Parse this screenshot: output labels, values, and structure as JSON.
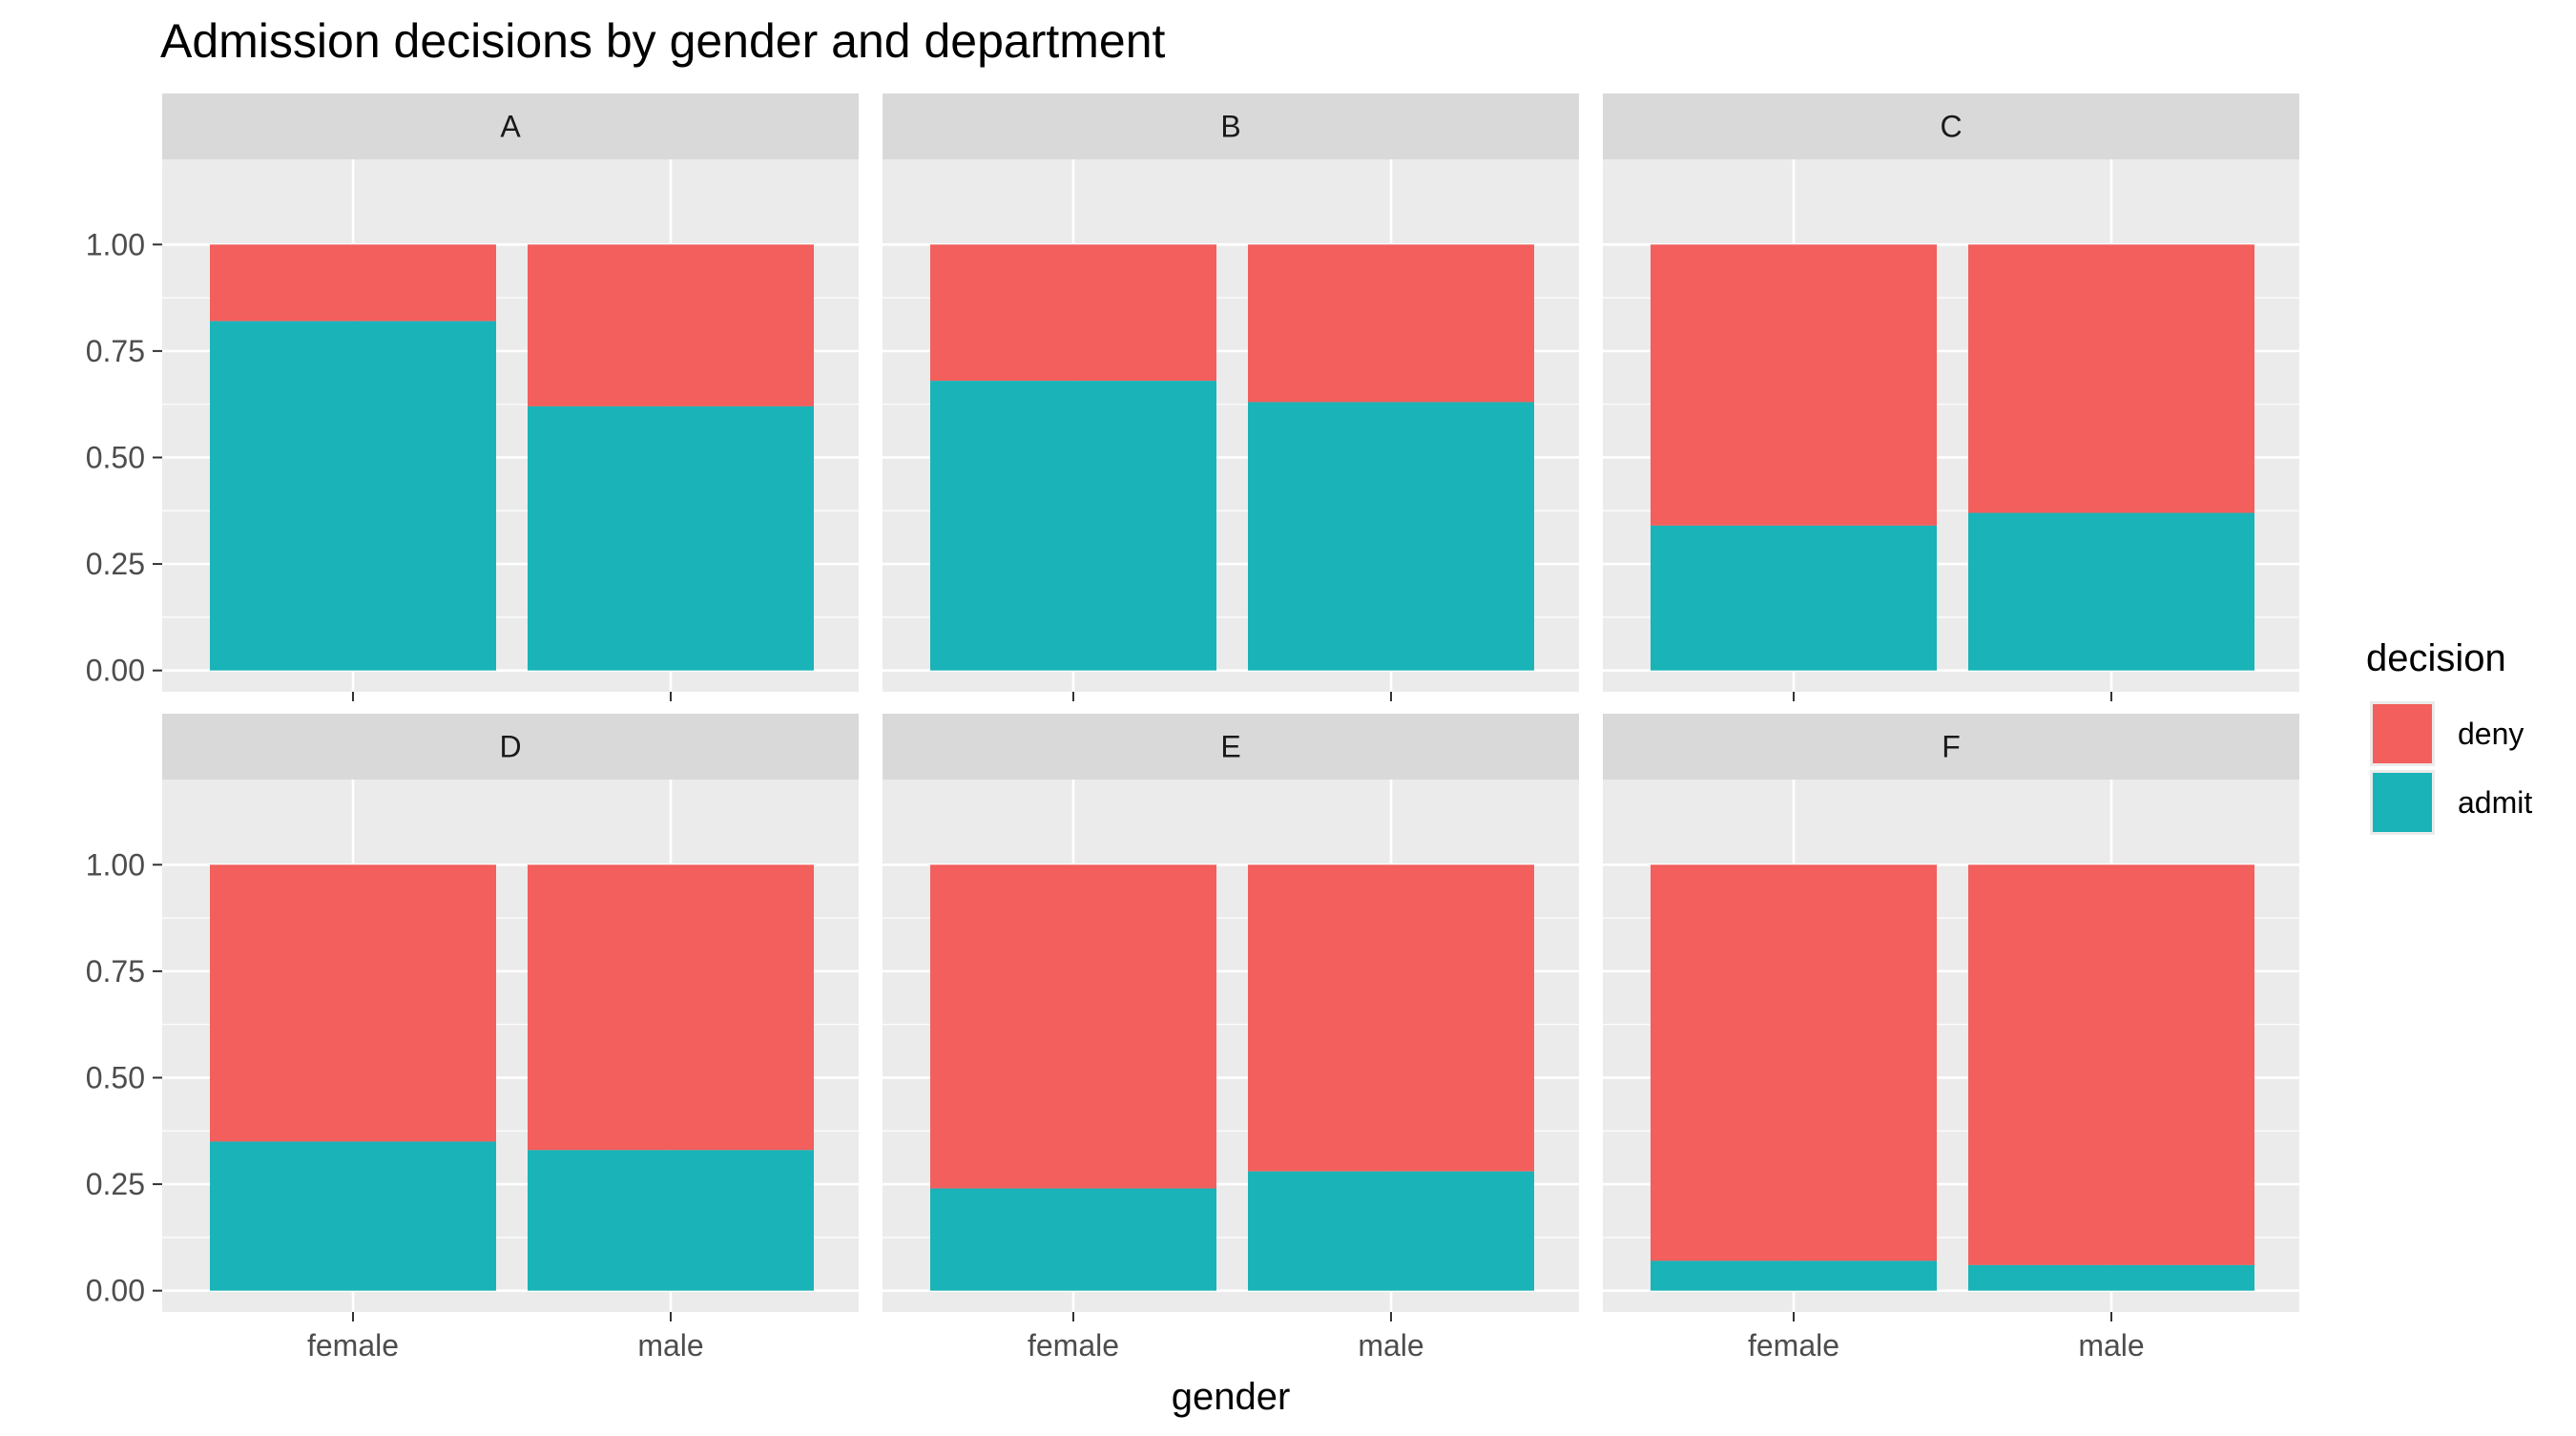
{
  "chart_data": {
    "type": "bar",
    "subtype": "stacked-proportion-faceted",
    "title": "Admission decisions by gender and department",
    "xlabel": "gender",
    "ylabel": "",
    "ylim": [
      0,
      1
    ],
    "yticks": [
      "0.00",
      "0.25",
      "0.50",
      "0.75",
      "1.00"
    ],
    "categories": [
      "female",
      "male"
    ],
    "legend": {
      "title": "decision",
      "placement": "right",
      "entries": [
        {
          "name": "deny",
          "color": "#F8766D"
        },
        {
          "name": "admit",
          "color": "#00BFC4"
        }
      ]
    },
    "colors": {
      "deny": "#F25F5C",
      "admit": "#19B3B8",
      "panel_bg": "#EBEBEB",
      "strip_bg": "#D9D9D9"
    },
    "facets": [
      {
        "label": "A",
        "admit": [
          0.82,
          0.62
        ],
        "deny": [
          0.18,
          0.38
        ]
      },
      {
        "label": "B",
        "admit": [
          0.68,
          0.63
        ],
        "deny": [
          0.32,
          0.37
        ]
      },
      {
        "label": "C",
        "admit": [
          0.34,
          0.37
        ],
        "deny": [
          0.66,
          0.63
        ]
      },
      {
        "label": "D",
        "admit": [
          0.35,
          0.33
        ],
        "deny": [
          0.65,
          0.67
        ]
      },
      {
        "label": "E",
        "admit": [
          0.24,
          0.28
        ],
        "deny": [
          0.76,
          0.72
        ]
      },
      {
        "label": "F",
        "admit": [
          0.07,
          0.06
        ],
        "deny": [
          0.93,
          0.94
        ]
      }
    ]
  }
}
